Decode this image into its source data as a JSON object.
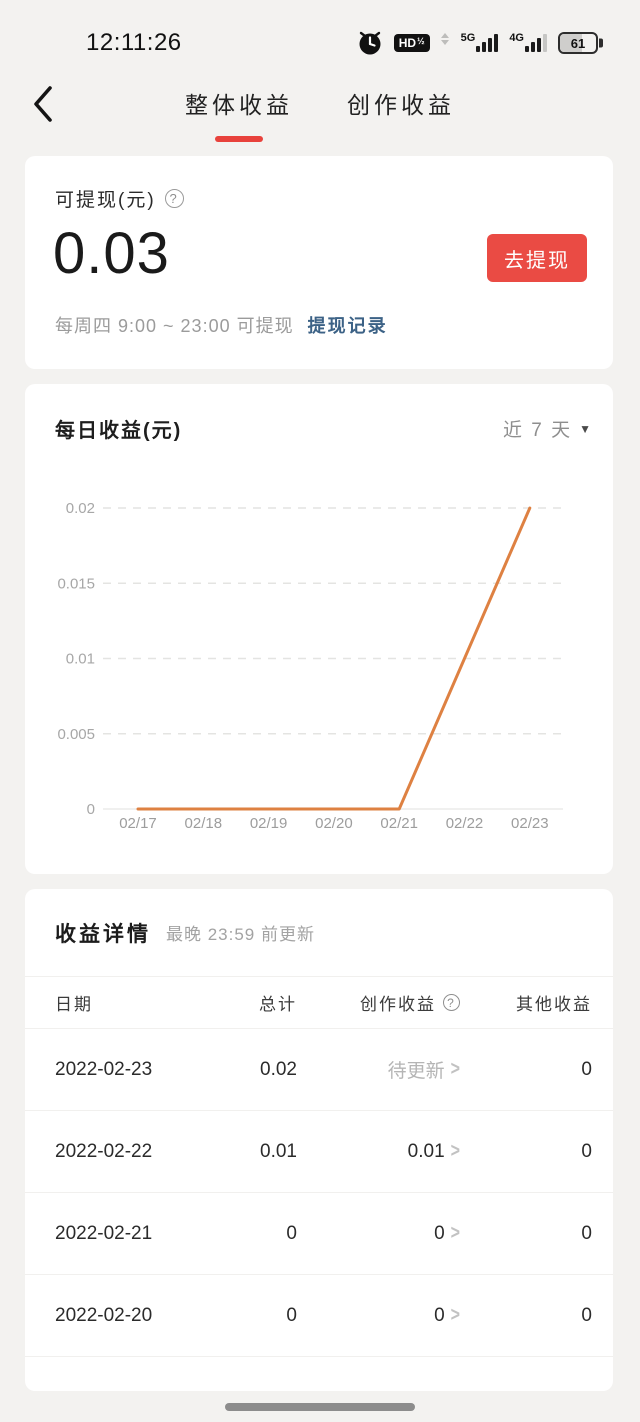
{
  "status_bar": {
    "time": "12:11:26",
    "hd_badge": "HD",
    "hd_badge_half": "½",
    "network_5g": "5G",
    "network_4g": "4G",
    "battery_percent": "61"
  },
  "header": {
    "tabs": [
      {
        "label": "整体收益",
        "active": true
      },
      {
        "label": "创作收益",
        "active": false
      }
    ]
  },
  "withdraw_card": {
    "label": "可提现(元)",
    "help_icon": "?",
    "amount": "0.03",
    "button_label": "去提现",
    "note": "每周四 9:00 ~ 23:00 可提现",
    "link_label": "提现记录"
  },
  "chart_card": {
    "title": "每日收益(元)",
    "range_label": "近 7 天",
    "caret_icon": "▼"
  },
  "chart_data": {
    "type": "line",
    "title": "每日收益(元)",
    "x": [
      "02/17",
      "02/18",
      "02/19",
      "02/20",
      "02/21",
      "02/22",
      "02/23"
    ],
    "series": [
      {
        "name": "每日收益",
        "values": [
          0,
          0,
          0,
          0,
          0,
          0.01,
          0.02
        ]
      }
    ],
    "ylim": [
      0,
      0.02
    ],
    "yticks": [
      0,
      0.005,
      0.01,
      0.015,
      0.02
    ],
    "grid": "horizontal-dashed",
    "legend": "none",
    "line_color": "#de8142"
  },
  "details_card": {
    "title": "收益详情",
    "subtitle": "最晚 23:59 前更新",
    "columns": [
      "日期",
      "总计",
      "创作收益",
      "其他收益"
    ],
    "help_icon": "?",
    "chevron_icon": ">",
    "rows": [
      {
        "date": "2022-02-23",
        "total": "0.02",
        "creation": "待更新",
        "creation_pending": true,
        "other": "0"
      },
      {
        "date": "2022-02-22",
        "total": "0.01",
        "creation": "0.01",
        "creation_pending": false,
        "other": "0"
      },
      {
        "date": "2022-02-21",
        "total": "0",
        "creation": "0",
        "creation_pending": false,
        "other": "0"
      },
      {
        "date": "2022-02-20",
        "total": "0",
        "creation": "0",
        "creation_pending": false,
        "other": "0"
      }
    ]
  },
  "colors": {
    "page_background": "#f3f2f0",
    "card_background": "#ffffff",
    "accent_red": "#e8423c",
    "button_red": "#ea4b44",
    "link_blue": "#3c6286",
    "chart_line_orange": "#de8142",
    "pending_gray": "#b5b5b5"
  }
}
